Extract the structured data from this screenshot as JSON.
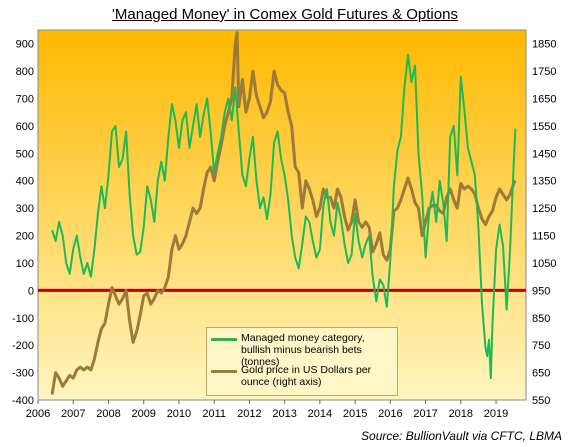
{
  "title": "'Managed Money' in Comex Gold Futures & Options",
  "source": {
    "prefix": "Source:",
    "text": "BullionVault via CFTC, LBMA"
  },
  "colors": {
    "money": "#1db954",
    "gold": "#9b7a3a",
    "zero": "#c00000",
    "bg_top": "#ffb800",
    "bg_bottom": "#fff5c0"
  },
  "chart_data": {
    "type": "line",
    "title": "'Managed Money' in Comex Gold Futures & Options",
    "x_ticks": [
      "2006",
      "2007",
      "2008",
      "2009",
      "2010",
      "2011",
      "2012",
      "2013",
      "2014",
      "2015",
      "2016",
      "2017",
      "2018",
      "2019"
    ],
    "xlim": [
      2006,
      2019.85
    ],
    "y_left_ticks": [
      "900",
      "800",
      "700",
      "600",
      "500",
      "400",
      "300",
      "200",
      "100",
      "0",
      "-100",
      "-200",
      "-300",
      "-400"
    ],
    "y_right_ticks": [
      "1850",
      "1750",
      "1650",
      "1550",
      "1450",
      "1350",
      "1250",
      "1150",
      "1050",
      "950",
      "850",
      "750",
      "650",
      "550"
    ],
    "ylim_left": [
      -400,
      950
    ],
    "ylim_right": [
      550,
      1900
    ],
    "zero_line": 0,
    "grid": false,
    "legend": "bottom-center",
    "series": [
      {
        "name": "Managed money category, bullish minus bearish bets (tonnes)",
        "axis": "left",
        "points": [
          [
            2006.4,
            220
          ],
          [
            2006.5,
            180
          ],
          [
            2006.6,
            250
          ],
          [
            2006.7,
            200
          ],
          [
            2006.8,
            100
          ],
          [
            2006.9,
            60
          ],
          [
            2007.0,
            150
          ],
          [
            2007.1,
            200
          ],
          [
            2007.2,
            120
          ],
          [
            2007.3,
            60
          ],
          [
            2007.4,
            100
          ],
          [
            2007.5,
            50
          ],
          [
            2007.6,
            150
          ],
          [
            2007.7,
            280
          ],
          [
            2007.8,
            380
          ],
          [
            2007.9,
            300
          ],
          [
            2008.0,
            420
          ],
          [
            2008.1,
            580
          ],
          [
            2008.2,
            600
          ],
          [
            2008.3,
            450
          ],
          [
            2008.4,
            480
          ],
          [
            2008.5,
            580
          ],
          [
            2008.6,
            350
          ],
          [
            2008.7,
            200
          ],
          [
            2008.8,
            130
          ],
          [
            2008.9,
            140
          ],
          [
            2009.0,
            230
          ],
          [
            2009.1,
            380
          ],
          [
            2009.2,
            330
          ],
          [
            2009.3,
            250
          ],
          [
            2009.4,
            400
          ],
          [
            2009.5,
            470
          ],
          [
            2009.6,
            400
          ],
          [
            2009.7,
            560
          ],
          [
            2009.8,
            680
          ],
          [
            2009.9,
            620
          ],
          [
            2010.0,
            520
          ],
          [
            2010.1,
            620
          ],
          [
            2010.2,
            650
          ],
          [
            2010.3,
            520
          ],
          [
            2010.4,
            600
          ],
          [
            2010.5,
            680
          ],
          [
            2010.6,
            560
          ],
          [
            2010.7,
            640
          ],
          [
            2010.8,
            700
          ],
          [
            2010.9,
            580
          ],
          [
            2011.0,
            430
          ],
          [
            2011.1,
            500
          ],
          [
            2011.2,
            560
          ],
          [
            2011.3,
            650
          ],
          [
            2011.4,
            700
          ],
          [
            2011.5,
            620
          ],
          [
            2011.6,
            740
          ],
          [
            2011.7,
            580
          ],
          [
            2011.8,
            420
          ],
          [
            2011.9,
            380
          ],
          [
            2012.0,
            480
          ],
          [
            2012.1,
            560
          ],
          [
            2012.2,
            400
          ],
          [
            2012.3,
            300
          ],
          [
            2012.4,
            340
          ],
          [
            2012.5,
            260
          ],
          [
            2012.6,
            350
          ],
          [
            2012.7,
            540
          ],
          [
            2012.8,
            580
          ],
          [
            2012.9,
            480
          ],
          [
            2013.0,
            420
          ],
          [
            2013.1,
            330
          ],
          [
            2013.2,
            200
          ],
          [
            2013.3,
            120
          ],
          [
            2013.4,
            80
          ],
          [
            2013.5,
            170
          ],
          [
            2013.6,
            270
          ],
          [
            2013.7,
            250
          ],
          [
            2013.8,
            180
          ],
          [
            2013.9,
            120
          ],
          [
            2014.0,
            150
          ],
          [
            2014.1,
            310
          ],
          [
            2014.2,
            370
          ],
          [
            2014.3,
            250
          ],
          [
            2014.4,
            200
          ],
          [
            2014.5,
            320
          ],
          [
            2014.6,
            260
          ],
          [
            2014.7,
            170
          ],
          [
            2014.8,
            100
          ],
          [
            2014.9,
            130
          ],
          [
            2015.0,
            280
          ],
          [
            2015.1,
            180
          ],
          [
            2015.2,
            120
          ],
          [
            2015.3,
            170
          ],
          [
            2015.4,
            200
          ],
          [
            2015.5,
            50
          ],
          [
            2015.6,
            -40
          ],
          [
            2015.7,
            40
          ],
          [
            2015.8,
            20
          ],
          [
            2015.9,
            -60
          ],
          [
            2016.0,
            110
          ],
          [
            2016.1,
            380
          ],
          [
            2016.2,
            510
          ],
          [
            2016.3,
            560
          ],
          [
            2016.4,
            740
          ],
          [
            2016.5,
            860
          ],
          [
            2016.6,
            760
          ],
          [
            2016.7,
            820
          ],
          [
            2016.8,
            500
          ],
          [
            2016.9,
            350
          ],
          [
            2017.0,
            120
          ],
          [
            2017.1,
            280
          ],
          [
            2017.2,
            360
          ],
          [
            2017.3,
            250
          ],
          [
            2017.4,
            400
          ],
          [
            2017.5,
            320
          ],
          [
            2017.6,
            180
          ],
          [
            2017.7,
            560
          ],
          [
            2017.8,
            600
          ],
          [
            2017.9,
            420
          ],
          [
            2018.0,
            780
          ],
          [
            2018.1,
            660
          ],
          [
            2018.2,
            520
          ],
          [
            2018.3,
            470
          ],
          [
            2018.4,
            420
          ],
          [
            2018.5,
            230
          ],
          [
            2018.6,
            -50
          ],
          [
            2018.7,
            -210
          ],
          [
            2018.75,
            -240
          ],
          [
            2018.8,
            -180
          ],
          [
            2018.85,
            -320
          ],
          [
            2018.9,
            -120
          ],
          [
            2019.0,
            150
          ],
          [
            2019.1,
            240
          ],
          [
            2019.2,
            160
          ],
          [
            2019.3,
            -70
          ],
          [
            2019.4,
            150
          ],
          [
            2019.5,
            460
          ],
          [
            2019.55,
            590
          ]
        ]
      },
      {
        "name": "Gold price in US Dollars per ounce (right axis)",
        "axis": "right",
        "points": [
          [
            2006.4,
            570
          ],
          [
            2006.5,
            650
          ],
          [
            2006.6,
            630
          ],
          [
            2006.7,
            600
          ],
          [
            2006.8,
            620
          ],
          [
            2006.9,
            640
          ],
          [
            2007.0,
            630
          ],
          [
            2007.1,
            660
          ],
          [
            2007.2,
            670
          ],
          [
            2007.3,
            660
          ],
          [
            2007.4,
            670
          ],
          [
            2007.5,
            660
          ],
          [
            2007.6,
            700
          ],
          [
            2007.7,
            760
          ],
          [
            2007.8,
            810
          ],
          [
            2007.9,
            830
          ],
          [
            2008.0,
            900
          ],
          [
            2008.1,
            960
          ],
          [
            2008.2,
            930
          ],
          [
            2008.3,
            900
          ],
          [
            2008.4,
            920
          ],
          [
            2008.5,
            950
          ],
          [
            2008.6,
            840
          ],
          [
            2008.7,
            760
          ],
          [
            2008.8,
            800
          ],
          [
            2008.9,
            860
          ],
          [
            2009.0,
            930
          ],
          [
            2009.1,
            940
          ],
          [
            2009.2,
            900
          ],
          [
            2009.3,
            920
          ],
          [
            2009.4,
            950
          ],
          [
            2009.5,
            940
          ],
          [
            2009.6,
            960
          ],
          [
            2009.7,
            1000
          ],
          [
            2009.8,
            1100
          ],
          [
            2009.9,
            1150
          ],
          [
            2010.0,
            1100
          ],
          [
            2010.1,
            1120
          ],
          [
            2010.2,
            1150
          ],
          [
            2010.3,
            1200
          ],
          [
            2010.4,
            1250
          ],
          [
            2010.5,
            1230
          ],
          [
            2010.6,
            1250
          ],
          [
            2010.7,
            1320
          ],
          [
            2010.8,
            1380
          ],
          [
            2010.9,
            1400
          ],
          [
            2011.0,
            1350
          ],
          [
            2011.1,
            1420
          ],
          [
            2011.2,
            1480
          ],
          [
            2011.3,
            1550
          ],
          [
            2011.4,
            1600
          ],
          [
            2011.5,
            1650
          ],
          [
            2011.6,
            1850
          ],
          [
            2011.65,
            1890
          ],
          [
            2011.7,
            1620
          ],
          [
            2011.8,
            1720
          ],
          [
            2011.9,
            1600
          ],
          [
            2012.0,
            1650
          ],
          [
            2012.1,
            1750
          ],
          [
            2012.2,
            1660
          ],
          [
            2012.3,
            1620
          ],
          [
            2012.4,
            1580
          ],
          [
            2012.5,
            1600
          ],
          [
            2012.6,
            1640
          ],
          [
            2012.7,
            1750
          ],
          [
            2012.8,
            1700
          ],
          [
            2012.9,
            1680
          ],
          [
            2013.0,
            1670
          ],
          [
            2013.1,
            1600
          ],
          [
            2013.2,
            1550
          ],
          [
            2013.3,
            1400
          ],
          [
            2013.4,
            1380
          ],
          [
            2013.5,
            1250
          ],
          [
            2013.6,
            1350
          ],
          [
            2013.7,
            1320
          ],
          [
            2013.8,
            1280
          ],
          [
            2013.9,
            1220
          ],
          [
            2014.0,
            1250
          ],
          [
            2014.1,
            1320
          ],
          [
            2014.2,
            1290
          ],
          [
            2014.3,
            1290
          ],
          [
            2014.4,
            1250
          ],
          [
            2014.5,
            1320
          ],
          [
            2014.6,
            1290
          ],
          [
            2014.7,
            1220
          ],
          [
            2014.8,
            1170
          ],
          [
            2014.9,
            1200
          ],
          [
            2015.0,
            1280
          ],
          [
            2015.1,
            1200
          ],
          [
            2015.2,
            1180
          ],
          [
            2015.3,
            1200
          ],
          [
            2015.4,
            1180
          ],
          [
            2015.5,
            1090
          ],
          [
            2015.6,
            1120
          ],
          [
            2015.7,
            1160
          ],
          [
            2015.8,
            1080
          ],
          [
            2015.9,
            1060
          ],
          [
            2016.0,
            1100
          ],
          [
            2016.1,
            1240
          ],
          [
            2016.2,
            1250
          ],
          [
            2016.3,
            1280
          ],
          [
            2016.4,
            1320
          ],
          [
            2016.5,
            1360
          ],
          [
            2016.6,
            1320
          ],
          [
            2016.7,
            1270
          ],
          [
            2016.8,
            1250
          ],
          [
            2016.9,
            1150
          ],
          [
            2017.0,
            1200
          ],
          [
            2017.1,
            1250
          ],
          [
            2017.2,
            1260
          ],
          [
            2017.3,
            1260
          ],
          [
            2017.4,
            1240
          ],
          [
            2017.5,
            1230
          ],
          [
            2017.6,
            1290
          ],
          [
            2017.7,
            1320
          ],
          [
            2017.8,
            1280
          ],
          [
            2017.9,
            1250
          ],
          [
            2018.0,
            1340
          ],
          [
            2018.1,
            1320
          ],
          [
            2018.2,
            1330
          ],
          [
            2018.3,
            1320
          ],
          [
            2018.4,
            1300
          ],
          [
            2018.5,
            1250
          ],
          [
            2018.6,
            1210
          ],
          [
            2018.7,
            1190
          ],
          [
            2018.8,
            1220
          ],
          [
            2018.9,
            1240
          ],
          [
            2019.0,
            1290
          ],
          [
            2019.1,
            1320
          ],
          [
            2019.2,
            1300
          ],
          [
            2019.3,
            1280
          ],
          [
            2019.4,
            1300
          ],
          [
            2019.5,
            1340
          ],
          [
            2019.55,
            1350
          ]
        ]
      }
    ]
  }
}
